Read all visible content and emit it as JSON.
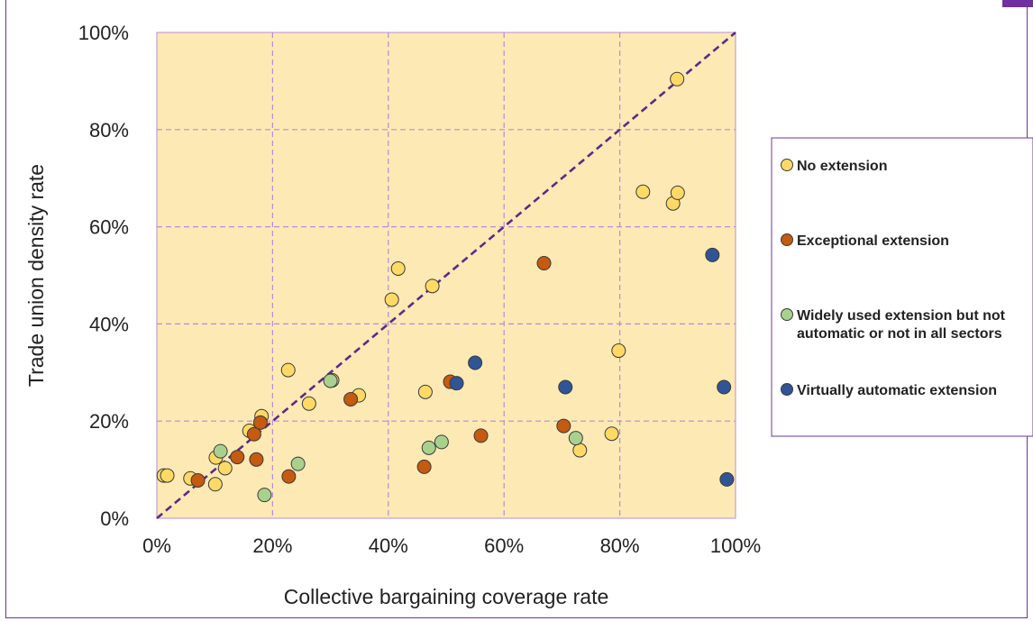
{
  "chart_data": {
    "type": "scatter",
    "title": "",
    "xlabel": "Collective bargaining coverage rate",
    "ylabel": "Trade union density rate",
    "xlim": [
      0,
      100
    ],
    "ylim": [
      0,
      100
    ],
    "x_ticks": [
      "0%",
      "20%",
      "40%",
      "60%",
      "80%",
      "100%"
    ],
    "y_ticks": [
      "0%",
      "20%",
      "40%",
      "60%",
      "80%",
      "100%"
    ],
    "grid": true,
    "diagonal_reference_line": true,
    "legend_position": "right",
    "plot_background": "#fde9b4",
    "series": [
      {
        "name": "No extension",
        "color": "#ffd966",
        "points": [
          [
            1.2,
            8.8
          ],
          [
            1.8,
            8.8
          ],
          [
            5.8,
            8.2
          ],
          [
            10.2,
            12.5
          ],
          [
            10.1,
            7.0
          ],
          [
            11.8,
            10.3
          ],
          [
            16,
            18
          ],
          [
            18.1,
            21
          ],
          [
            22.7,
            30.5
          ],
          [
            26.3,
            23.6
          ],
          [
            30.3,
            28.4
          ],
          [
            34.9,
            25.3
          ],
          [
            40.6,
            45
          ],
          [
            41.7,
            51.4
          ],
          [
            46.4,
            26
          ],
          [
            47.6,
            47.8
          ],
          [
            79.8,
            34.5
          ],
          [
            78.6,
            17.4
          ],
          [
            73.1,
            14
          ],
          [
            84,
            67.2
          ],
          [
            89.2,
            64.8
          ],
          [
            90,
            67
          ],
          [
            89.9,
            90.4
          ]
        ]
      },
      {
        "name": "Exceptional extension",
        "color": "#c55a11",
        "points": [
          [
            7.1,
            7.8
          ],
          [
            13.9,
            12.6
          ],
          [
            16.8,
            17.3
          ],
          [
            17.9,
            19.7
          ],
          [
            17.2,
            12.1
          ],
          [
            22.8,
            8.6
          ],
          [
            33.5,
            24.5
          ],
          [
            46.2,
            10.6
          ],
          [
            50.7,
            28.1
          ],
          [
            56,
            17
          ],
          [
            66.9,
            52.5
          ],
          [
            70.3,
            19
          ]
        ]
      },
      {
        "name": "Widely used extension but not automatic or not in all sectors",
        "color": "#a9d18e",
        "points": [
          [
            11,
            13.8
          ],
          [
            18.6,
            4.8
          ],
          [
            24.4,
            11.2
          ],
          [
            30,
            28.3
          ],
          [
            47,
            14.5
          ],
          [
            49.2,
            15.7
          ],
          [
            72.4,
            16.5
          ]
        ]
      },
      {
        "name": "Virtually automatic extension",
        "color": "#2f5597",
        "points": [
          [
            51.8,
            27.8
          ],
          [
            55,
            32
          ],
          [
            70.6,
            27
          ],
          [
            96,
            54.2
          ],
          [
            98,
            27
          ],
          [
            98.5,
            8
          ]
        ]
      }
    ]
  },
  "legend": {
    "items": [
      {
        "label_lines": [
          "No extension"
        ]
      },
      {
        "label_lines": [
          "Exceptional extension"
        ]
      },
      {
        "label_lines": [
          "Widely used extension but not",
          "automatic or not in all sectors"
        ]
      },
      {
        "label_lines": [
          "Virtually automatic extension"
        ]
      }
    ]
  },
  "colors": {
    "frame_border": "#7030a0",
    "grid": "#b48ed8",
    "diagonal": "#5b2a86",
    "marker_outline": "#3a3a3a"
  }
}
